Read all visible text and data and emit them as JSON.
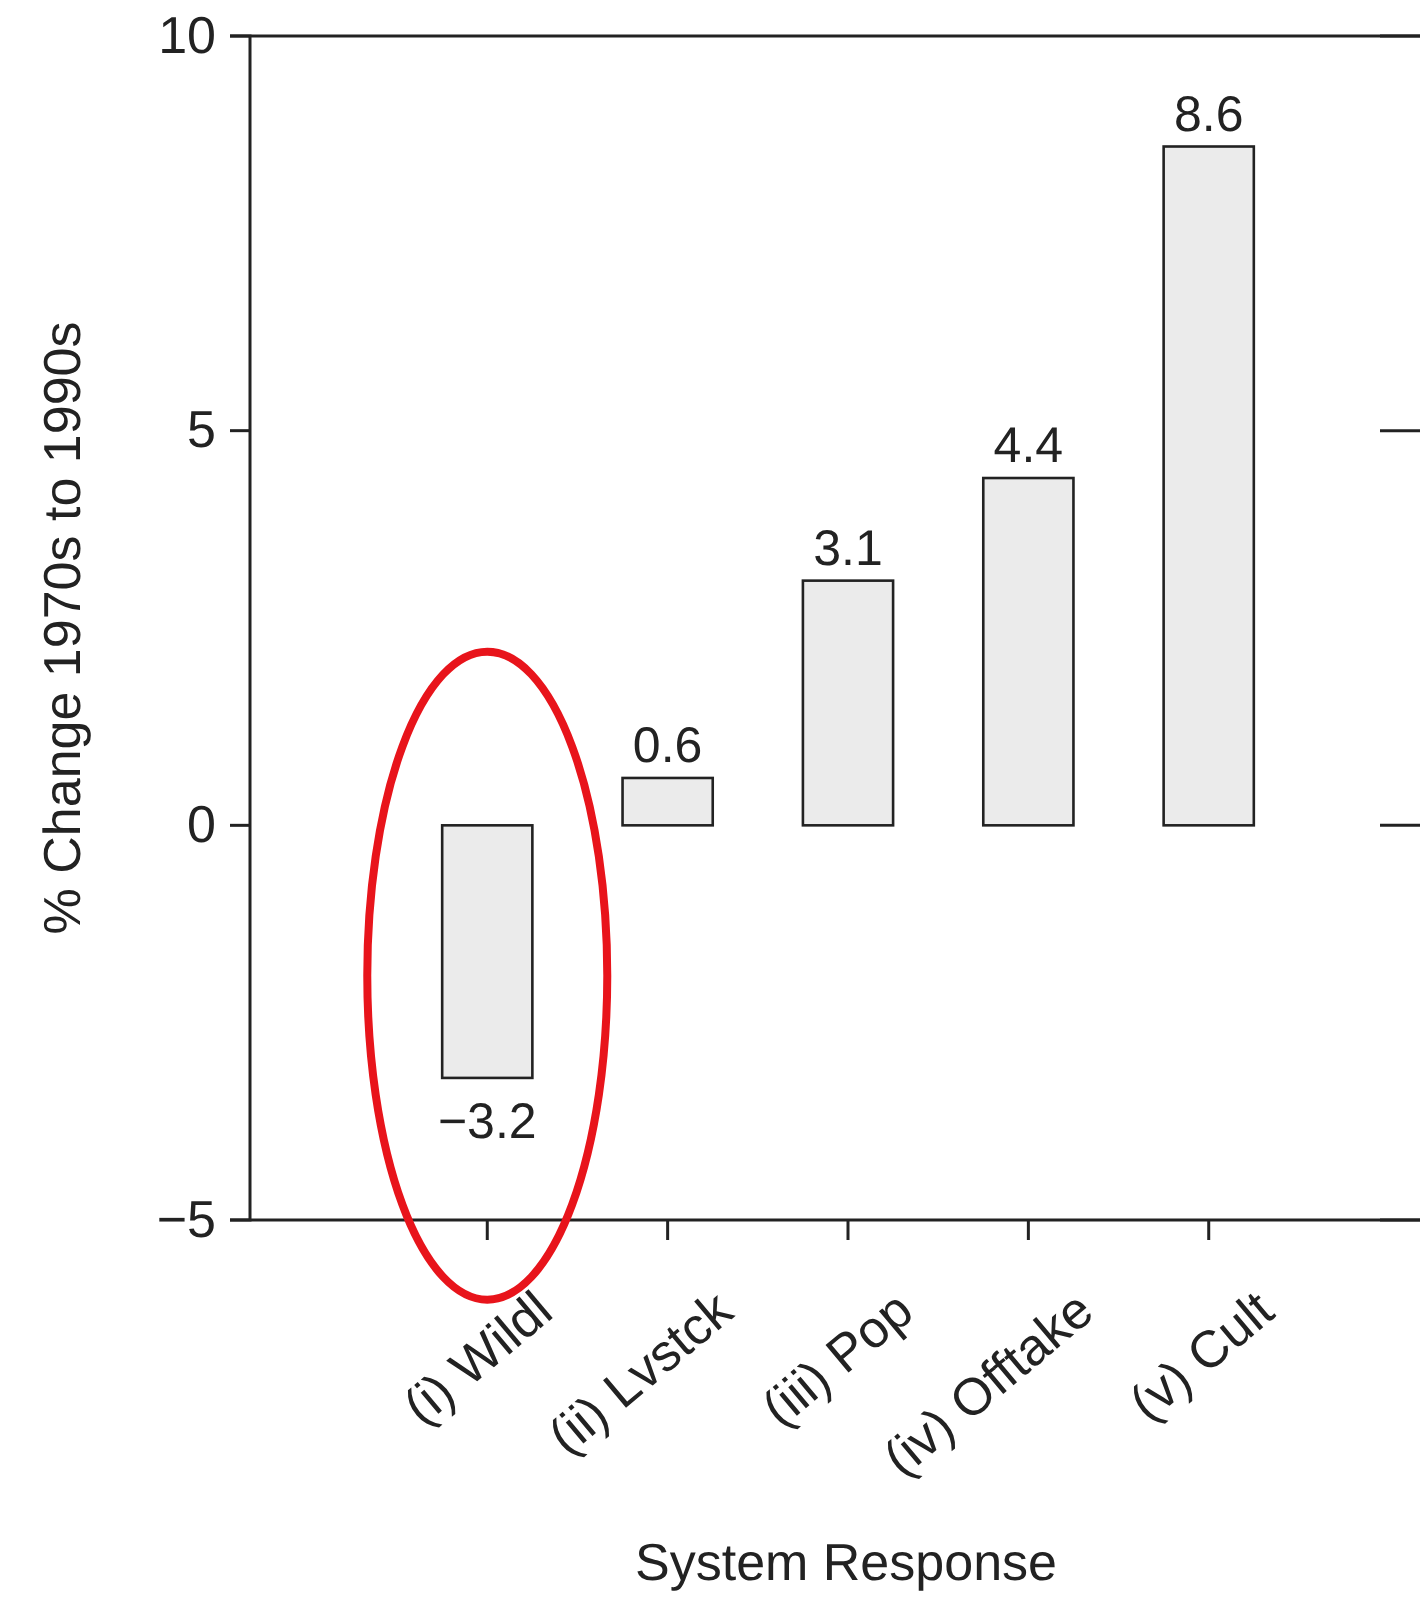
{
  "chart_data": {
    "type": "bar",
    "xlabel": "System Response",
    "ylabel": "% Change 1970s to 1990s",
    "categories": [
      "(i) Wildl",
      "(ii) Lvstck",
      "(iii) Pop",
      "(iv) Offtake",
      "(v) Cult"
    ],
    "values": [
      -3.2,
      0.6,
      3.1,
      4.4,
      8.6
    ],
    "color": "#ebebeb",
    "value_labels": [
      "−3.2",
      "0.6",
      "3.1",
      "4.4",
      "8.6"
    ],
    "ylim": [
      -5,
      10
    ],
    "yticks": [
      {
        "value": -5,
        "label": "−5"
      },
      0,
      5,
      10
    ],
    "grid": false
  }
}
